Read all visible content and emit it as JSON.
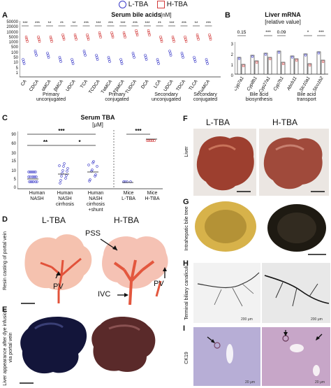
{
  "legend": {
    "low": "L-TBA",
    "high": "H-TBA"
  },
  "panel_a": {
    "letter": "A",
    "title": "Serum bile acids",
    "unit": "[nM]",
    "yticks": [
      "50000",
      "20000",
      "10000",
      "5000",
      "1000",
      "500",
      "100",
      "50",
      "10",
      "5",
      "1"
    ],
    "acids": [
      "CA",
      "CDCA",
      "αMCA",
      "βMCA",
      "UDCA",
      "TCA",
      "TCDCA",
      "TαMCA",
      "TβMCA",
      "TUDCA",
      "DCA",
      "LCA",
      "UDCA",
      "TDCA",
      "TLCA",
      "TωMCA"
    ],
    "sig": [
      "***",
      "***",
      "**",
      "**",
      "**",
      "***",
      "***",
      "***",
      "***",
      "***",
      "***",
      "**",
      "***",
      "***",
      "**",
      "***"
    ],
    "groups": [
      {
        "line1": "Primary",
        "line2": "unconjugated"
      },
      {
        "line1": "Primary",
        "line2": "conjugated"
      },
      {
        "line1": "Secondary",
        "line2": "unconjugated"
      },
      {
        "line1": "Secondary",
        "line2": "conjugated"
      }
    ]
  },
  "panel_b": {
    "letter": "B",
    "title": "Liver mRNA",
    "unit": "[relative value]",
    "yticks": [
      "3",
      "2",
      "1",
      "0"
    ],
    "genes": [
      "Cyp7a1",
      "Cyp8b1",
      "Cyp27a1",
      "Cyp7b1",
      "Abcb11",
      "Slc10a1",
      "Slco1b2"
    ],
    "sig": [
      "0.15",
      "0",
      "***",
      "0.09",
      "",
      "*",
      "***"
    ],
    "group1": {
      "line1": "Bile acid",
      "line2": "biosynthesis"
    },
    "group2": {
      "line1": "Bile acid",
      "line2": "transport"
    }
  },
  "panel_c": {
    "letter": "C",
    "title": "Serum TBA",
    "unit": "[μM]",
    "yticks": [
      "90",
      "60",
      "30",
      "15",
      "10",
      "5",
      "0"
    ],
    "groups": [
      {
        "line1": "Human",
        "line2": "NASH",
        "line3": ""
      },
      {
        "line1": "Human",
        "line2": "NASH",
        "line3": "cirrhosis"
      },
      {
        "line1": "Human",
        "line2": "NASH",
        "line3": "cirrhosis",
        "line4": "+shunt"
      },
      {
        "line1": "Mice",
        "line2": "L-TBA",
        "line3": ""
      },
      {
        "line1": "Mice",
        "line2": "H-TBA",
        "line3": ""
      }
    ],
    "sig": [
      "***",
      "**",
      "*",
      "***"
    ]
  },
  "panel_d": {
    "letter": "D",
    "left": "L-TBA",
    "right": "H-TBA",
    "side": "Resin casting of portal vein",
    "pss": "PSS",
    "pv": "PV",
    "ivc": "IVC"
  },
  "panel_e": {
    "letter": "E",
    "side": "Liver appearance after dye infusion via portal vein"
  },
  "panel_f": {
    "letter": "F",
    "left": "L-TBA",
    "right": "H-TBA",
    "side": "Liver"
  },
  "panel_g": {
    "letter": "G",
    "side": "Intrahepatic bile tree"
  },
  "panel_h": {
    "letter": "H",
    "side": "Terminal biliary canaliculi",
    "scale": "200 μm"
  },
  "panel_i": {
    "letter": "I",
    "side": "CK19",
    "scale": "20 μm"
  }
}
